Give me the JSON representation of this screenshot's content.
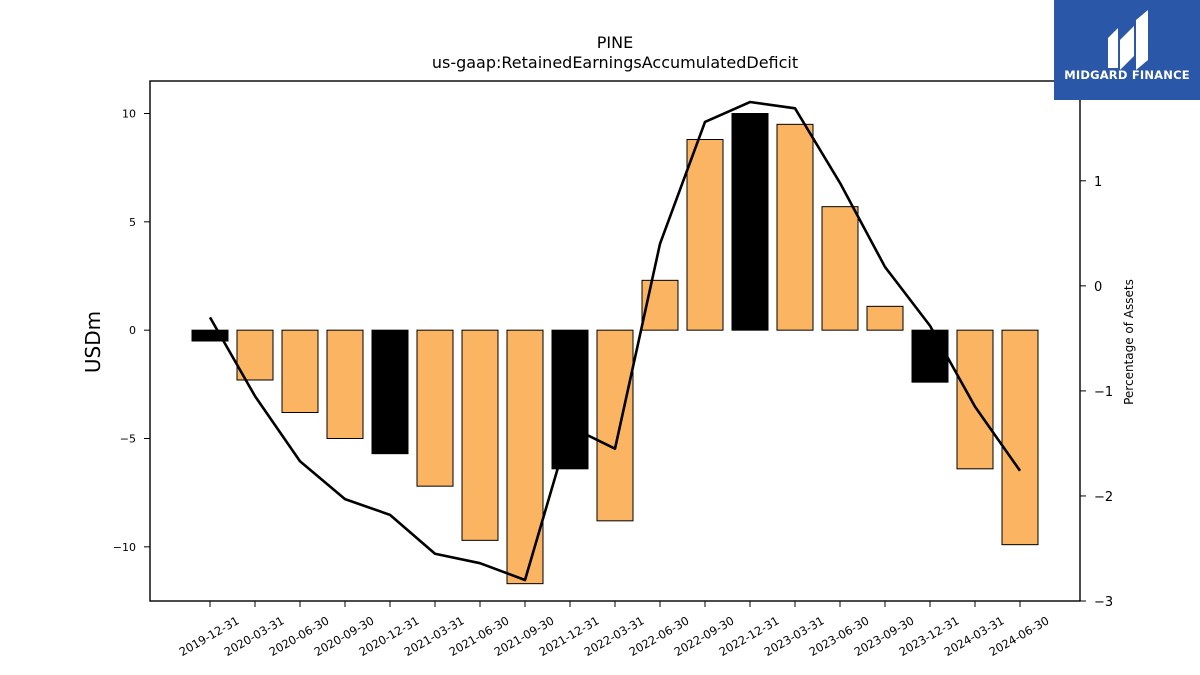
{
  "logo": {
    "name": "MIDGARD FINANCE",
    "bg": "#2b57a8"
  },
  "chart_data": {
    "type": "bar",
    "title": "PINE",
    "subtitle": "us-gaap:RetainedEarningsAccumulatedDeficit",
    "ylabel": "USDm",
    "y2label": "Percentage of Assets",
    "categories": [
      "2019-12-31",
      "2020-03-31",
      "2020-06-30",
      "2020-09-30",
      "2020-12-31",
      "2021-03-31",
      "2021-06-30",
      "2021-09-30",
      "2021-12-31",
      "2022-03-31",
      "2022-06-30",
      "2022-09-30",
      "2022-12-31",
      "2023-03-31",
      "2023-06-30",
      "2023-09-30",
      "2023-12-31",
      "2024-03-31",
      "2024-06-30"
    ],
    "series": [
      {
        "type": "bar",
        "values": [
          -0.5,
          -2.3,
          -3.8,
          -5.0,
          -5.7,
          -7.2,
          -9.7,
          -11.7,
          -6.4,
          -8.8,
          2.3,
          8.8,
          10.0,
          9.5,
          5.7,
          1.1,
          -2.4,
          -6.4,
          -9.9
        ]
      },
      {
        "type": "line",
        "axis": "right",
        "values": [
          -0.3,
          -1.05,
          -1.67,
          -2.03,
          -2.18,
          -2.55,
          -2.64,
          -2.8,
          -1.34,
          -1.55,
          0.4,
          1.56,
          1.75,
          1.69,
          0.98,
          0.18,
          -0.38,
          -1.15,
          -1.76
        ]
      }
    ],
    "highlight_indices": [
      0,
      4,
      8,
      12,
      16
    ],
    "colors": {
      "bar": "#fbb461",
      "highlight": "#000000",
      "line": "#000000"
    },
    "yticks": [
      -10,
      -5,
      0,
      5,
      10
    ],
    "y2ticks": [
      -3,
      -2,
      -1,
      0,
      1
    ],
    "ytick_labels": [
      "−10",
      "−5",
      "0",
      "5",
      "10"
    ],
    "y2tick_labels": [
      "−3",
      "−2",
      "−1",
      "0",
      "1"
    ],
    "ylim": [
      -12.5,
      11.5
    ],
    "y2lim": [
      -3.0,
      1.95
    ],
    "grid": false,
    "legend": "none"
  }
}
